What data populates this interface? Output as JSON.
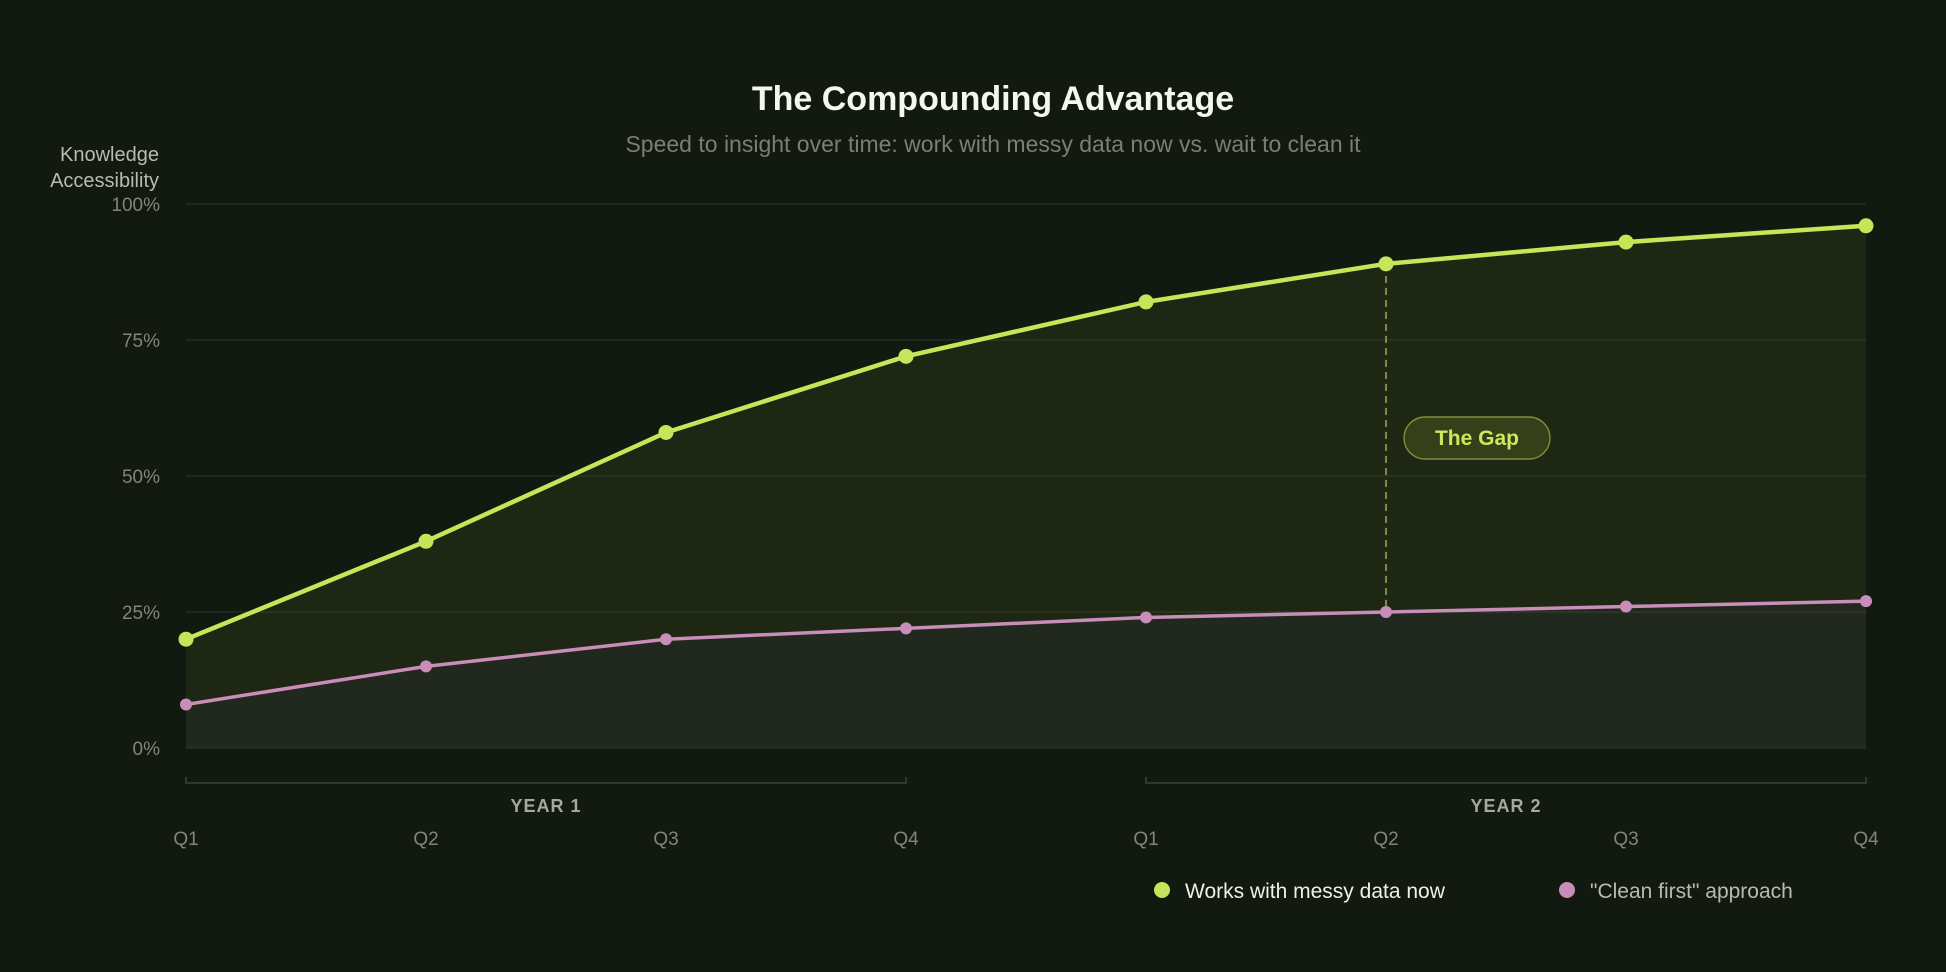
{
  "chart_data": {
    "type": "line",
    "title": "The Compounding Advantage",
    "subtitle": "Speed to insight over time: work with messy data now vs. wait to clean it",
    "ylabel_lines": [
      "Knowledge",
      "Accessibility"
    ],
    "xlabel": "",
    "ylim": [
      0,
      100
    ],
    "y_ticks": [
      0,
      25,
      50,
      75,
      100
    ],
    "y_tick_labels": [
      "0%",
      "25%",
      "50%",
      "75%",
      "100%"
    ],
    "categories": [
      "Q1",
      "Q2",
      "Q3",
      "Q4",
      "Q1",
      "Q2",
      "Q3",
      "Q4"
    ],
    "groups": [
      {
        "label": "YEAR 1",
        "start_index": 0,
        "end_index": 3
      },
      {
        "label": "YEAR 2",
        "start_index": 4,
        "end_index": 7
      }
    ],
    "series": [
      {
        "name": "Works with messy data now",
        "color": "#c6e558",
        "values": [
          20,
          38,
          58,
          72,
          82,
          89,
          93,
          96
        ]
      },
      {
        "name": "\"Clean first\" approach",
        "color": "#c88db8",
        "values": [
          8,
          15,
          20,
          22,
          24,
          25,
          26,
          27
        ]
      }
    ],
    "annotation": {
      "label": "The Gap",
      "category_index": 5
    },
    "grid": true,
    "legend_position": "bottom-right"
  },
  "colors": {
    "background": "#121910",
    "grid": "#27301f",
    "gap_box_fill": "#353f1a",
    "gap_box_stroke": "#7e903a"
  }
}
